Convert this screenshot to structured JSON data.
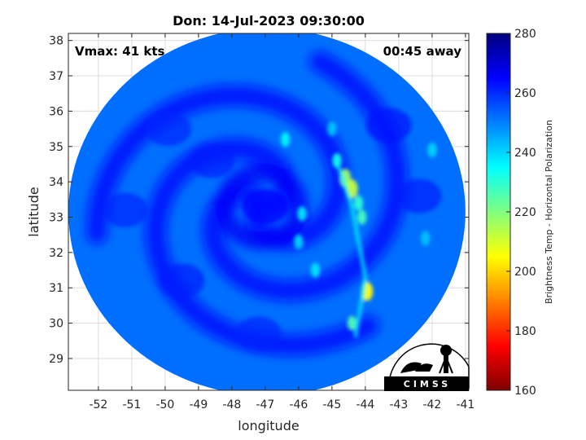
{
  "chart_data": {
    "type": "heatmap",
    "title": "Don: 14-Jul-2023 09:30:00",
    "xlabel": "longitude",
    "ylabel": "latitude",
    "xlim": [
      -52.9,
      -40.9
    ],
    "ylim": [
      28.1,
      38.2
    ],
    "xticks": [
      -52,
      -51,
      -50,
      -49,
      -48,
      -47,
      -46,
      -45,
      -44,
      -43,
      -42,
      -41
    ],
    "yticks": [
      29,
      30,
      31,
      32,
      33,
      34,
      35,
      36,
      37,
      38
    ],
    "grid": true,
    "annotations": {
      "vmax": "Vmax: 41 kts",
      "time_away": "00:45 away"
    },
    "colorbar": {
      "label": "Brightness Temp - Horizontal Polarization",
      "range": [
        160,
        280
      ],
      "ticks": [
        160,
        180,
        200,
        220,
        240,
        260,
        280
      ],
      "colors": [
        "#7f0000",
        "#ff0000",
        "#ff8000",
        "#ffff00",
        "#80ff80",
        "#00ffff",
        "#0080ff",
        "#0000ff",
        "#00007f"
      ]
    },
    "swath": {
      "center": [
        -46.95,
        33.15
      ],
      "radius_lon": 5.95,
      "radius_lat": 5.2,
      "background_temp": 252,
      "storm_center": [
        -47.1,
        33.3
      ]
    },
    "features": [
      {
        "lon": -47.0,
        "lat": 33.3,
        "temp": 264
      },
      {
        "lon": -48.6,
        "lat": 34.6,
        "temp": 262
      },
      {
        "lon": -49.9,
        "lat": 35.5,
        "temp": 261
      },
      {
        "lon": -51.2,
        "lat": 33.2,
        "temp": 261
      },
      {
        "lon": -49.5,
        "lat": 31.2,
        "temp": 262
      },
      {
        "lon": -47.2,
        "lat": 29.7,
        "temp": 261
      },
      {
        "lon": -43.3,
        "lat": 35.6,
        "temp": 263
      },
      {
        "lon": -42.4,
        "lat": 33.6,
        "temp": 262
      },
      {
        "lon": -44.6,
        "lat": 34.1,
        "temp": 217
      },
      {
        "lon": -44.4,
        "lat": 33.8,
        "temp": 212
      },
      {
        "lon": -44.85,
        "lat": 34.6,
        "temp": 232
      },
      {
        "lon": -44.2,
        "lat": 33.4,
        "temp": 230
      },
      {
        "lon": -44.1,
        "lat": 33.0,
        "temp": 227
      },
      {
        "lon": -43.95,
        "lat": 30.9,
        "temp": 205
      },
      {
        "lon": -44.4,
        "lat": 30.0,
        "temp": 226
      },
      {
        "lon": -45.9,
        "lat": 33.1,
        "temp": 238
      },
      {
        "lon": -46.0,
        "lat": 32.3,
        "temp": 240
      },
      {
        "lon": -45.5,
        "lat": 31.5,
        "temp": 238
      },
      {
        "lon": -46.4,
        "lat": 35.2,
        "temp": 236
      },
      {
        "lon": -45.0,
        "lat": 35.5,
        "temp": 242
      },
      {
        "lon": -42.0,
        "lat": 34.9,
        "temp": 240
      },
      {
        "lon": -42.2,
        "lat": 32.4,
        "temp": 242
      }
    ]
  },
  "logo": {
    "text": "CIMSS"
  }
}
